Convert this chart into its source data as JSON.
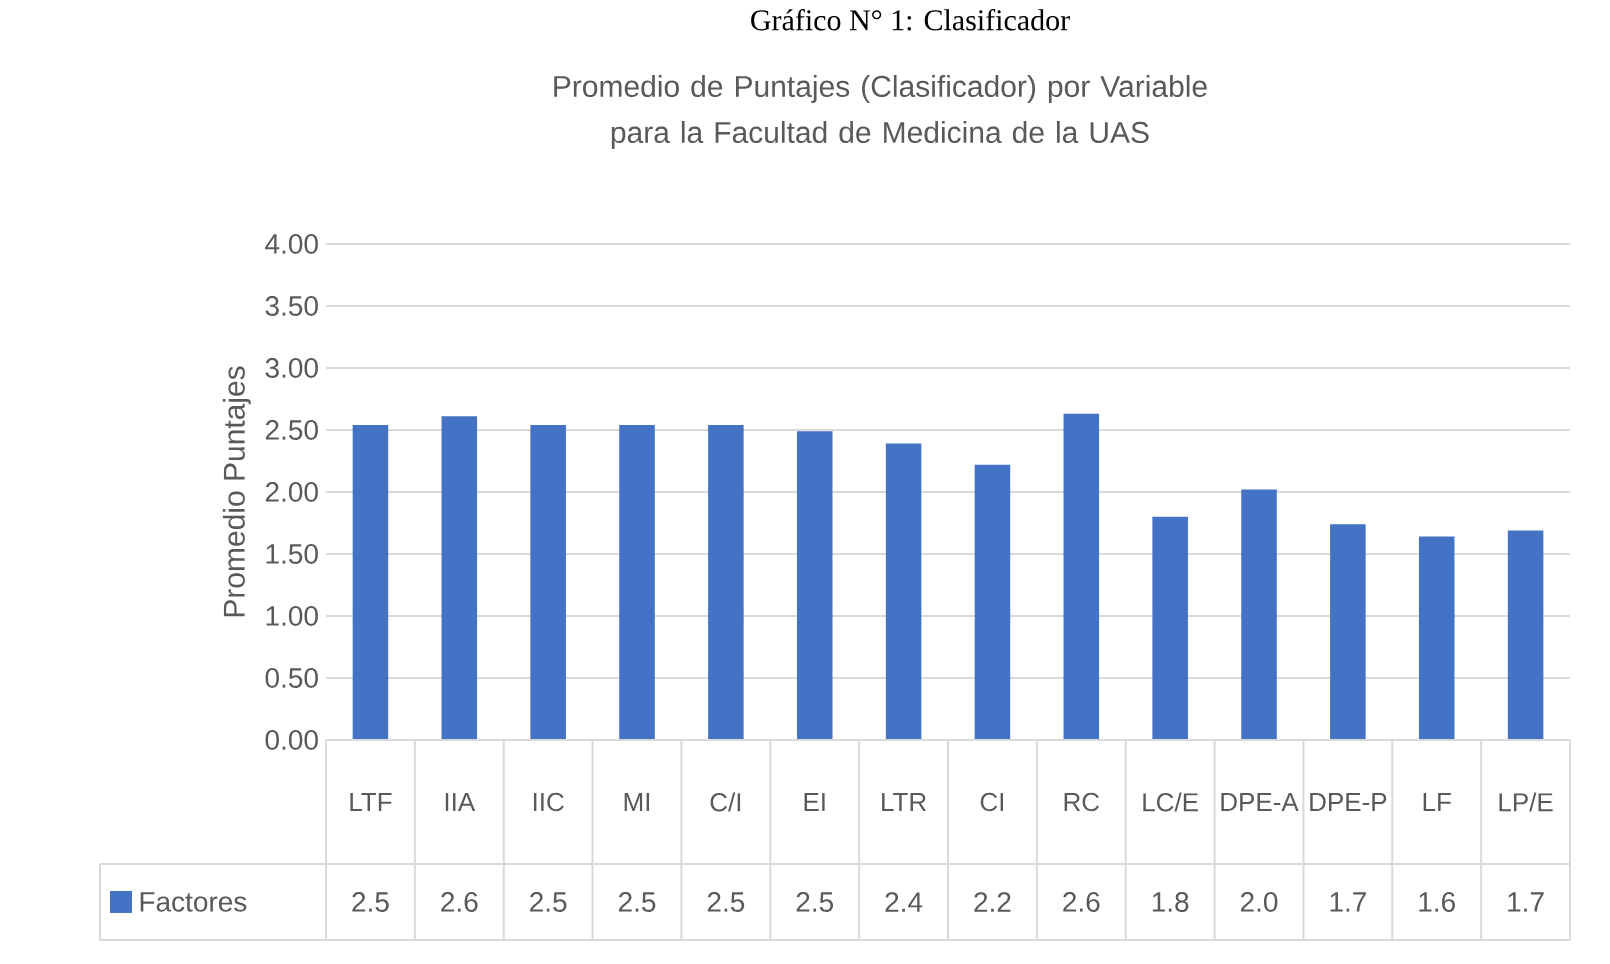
{
  "chart_data": {
    "type": "bar",
    "title": "Gráfico N° 1: Clasificador",
    "subtitle": "Promedio de Puntajes (Clasificador) por Variable para la Facultad de Medicina de la UAS",
    "ylabel": "Promedio Puntajes",
    "categories": [
      "LTF",
      "IIA",
      "IIC",
      "MI",
      "C/I",
      "EI",
      "LTR",
      "CI",
      "RC",
      "LC/E",
      "DPE-A",
      "DPE-P",
      "LF",
      "LP/E"
    ],
    "series": [
      {
        "name": "Factores",
        "color": "#4472c4",
        "values": [
          2.54,
          2.61,
          2.54,
          2.54,
          2.54,
          2.49,
          2.39,
          2.22,
          2.63,
          1.8,
          2.02,
          1.74,
          1.64,
          1.69
        ],
        "value_labels": [
          "2.5",
          "2.6",
          "2.5",
          "2.5",
          "2.5",
          "2.5",
          "2.4",
          "2.2",
          "2.6",
          "1.8",
          "2.0",
          "1.7",
          "1.6",
          "1.7"
        ]
      }
    ],
    "ylim": [
      0,
      4
    ],
    "yticks": [
      {
        "value": 0,
        "label": "0.00"
      },
      {
        "value": 0.5,
        "label": "0.50"
      },
      {
        "value": 1,
        "label": "1.00"
      },
      {
        "value": 1.5,
        "label": "1.50"
      },
      {
        "value": 2,
        "label": "2.00"
      },
      {
        "value": 2.5,
        "label": "2.50"
      },
      {
        "value": 3,
        "label": "3.00"
      },
      {
        "value": 3.5,
        "label": "3.50"
      },
      {
        "value": 4,
        "label": "4.00"
      }
    ],
    "grid": "y",
    "legend": "bottom left"
  }
}
